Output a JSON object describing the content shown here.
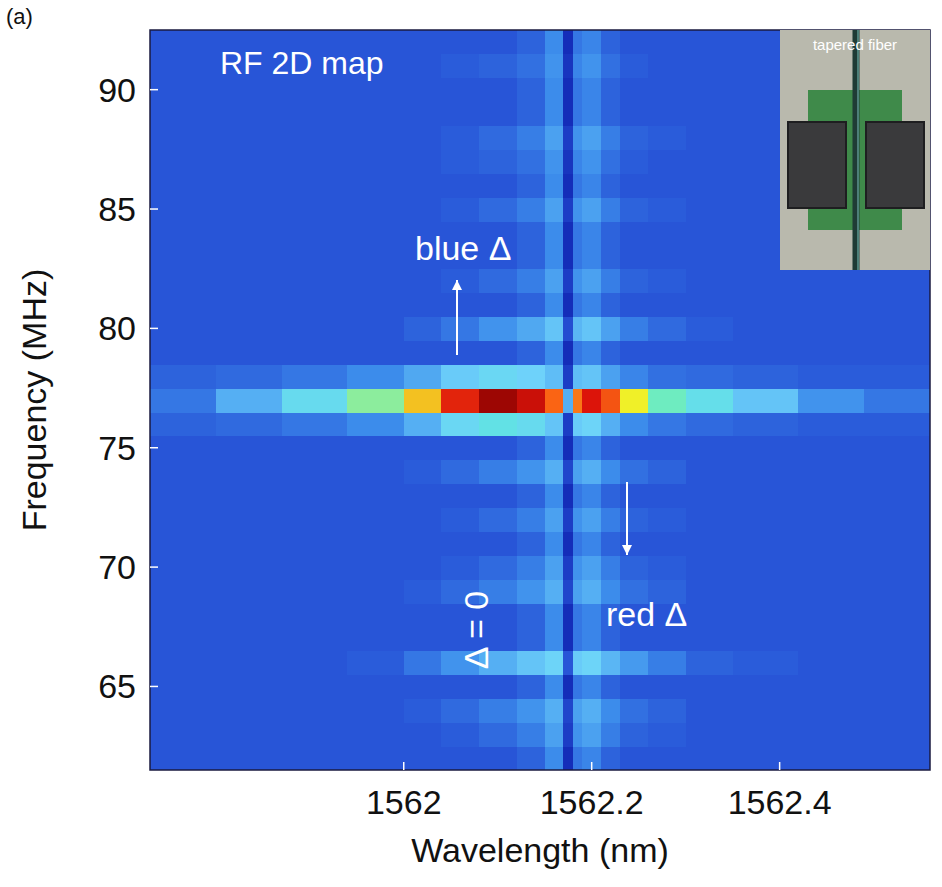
{
  "chart_data": {
    "type": "heatmap",
    "panel_label": "(a)",
    "title": "RF 2D map",
    "x_label": "Wavelength (nm)",
    "y_label": "Frequency (MHz)",
    "annotations": [
      "blue Δ",
      "red Δ",
      "Δ = 0"
    ],
    "inset_label": "tapered fiber",
    "xlim": [
      1561.73,
      1562.56
    ],
    "ylim": [
      61.5,
      92.5
    ],
    "xticks": [
      1562,
      1562.2,
      1562.4
    ],
    "yticks": [
      65,
      70,
      75,
      80,
      85,
      90
    ],
    "zlim": [
      0,
      100
    ],
    "x_bins": [
      1561.73,
      1561.8,
      1561.87,
      1561.94,
      1562.0,
      1562.04,
      1562.08,
      1562.12,
      1562.15,
      1562.17,
      1562.18,
      1562.19,
      1562.21,
      1562.23,
      1562.26,
      1562.3,
      1562.35,
      1562.42,
      1562.49,
      1562.56
    ],
    "y_bins": [
      61.5,
      62.5,
      63.5,
      64.5,
      65.5,
      66.5,
      67.5,
      68.5,
      69.5,
      70.5,
      71.5,
      72.5,
      73.5,
      74.5,
      75.5,
      76.5,
      77.5,
      78.5,
      79.5,
      80.5,
      81.5,
      82.5,
      83.5,
      84.5,
      85.5,
      86.5,
      87.5,
      88.5,
      89.5,
      90.5,
      91.5,
      92.5
    ],
    "values": [
      [
        17,
        17,
        17,
        17,
        17,
        17,
        17,
        19,
        25,
        12,
        22,
        24,
        19,
        17,
        17,
        17,
        17,
        17,
        17
      ],
      [
        17,
        17,
        17,
        17,
        17,
        18,
        20,
        23,
        28,
        14,
        26,
        28,
        23,
        19,
        18,
        17,
        17,
        17,
        17
      ],
      [
        17,
        17,
        17,
        17,
        18,
        20,
        23,
        26,
        30,
        15,
        28,
        30,
        25,
        21,
        19,
        17,
        17,
        17,
        17
      ],
      [
        17,
        17,
        17,
        17,
        17,
        17,
        17,
        19,
        25,
        12,
        22,
        24,
        19,
        17,
        17,
        17,
        17,
        17,
        17
      ],
      [
        17,
        17,
        17,
        18,
        22,
        26,
        30,
        33,
        36,
        17,
        34,
        36,
        31,
        27,
        23,
        19,
        18,
        17,
        17
      ],
      [
        17,
        17,
        17,
        17,
        17,
        17,
        17,
        19,
        25,
        12,
        22,
        24,
        19,
        17,
        17,
        17,
        17,
        17,
        17
      ],
      [
        17,
        17,
        17,
        17,
        17,
        17,
        17,
        19,
        25,
        12,
        22,
        24,
        19,
        17,
        17,
        17,
        17,
        17,
        17
      ],
      [
        17,
        17,
        17,
        17,
        18,
        20,
        23,
        26,
        30,
        15,
        28,
        30,
        25,
        21,
        19,
        17,
        17,
        17,
        17
      ],
      [
        17,
        17,
        17,
        17,
        17,
        18,
        20,
        23,
        28,
        14,
        26,
        28,
        23,
        19,
        18,
        17,
        17,
        17,
        17
      ],
      [
        17,
        17,
        17,
        17,
        17,
        17,
        17,
        19,
        25,
        12,
        22,
        24,
        19,
        17,
        17,
        17,
        17,
        17,
        17
      ],
      [
        17,
        17,
        17,
        17,
        17,
        18,
        20,
        23,
        28,
        14,
        26,
        28,
        23,
        19,
        18,
        17,
        17,
        17,
        17
      ],
      [
        17,
        17,
        17,
        17,
        17,
        17,
        17,
        19,
        25,
        12,
        22,
        24,
        19,
        17,
        17,
        17,
        17,
        17,
        17
      ],
      [
        17,
        17,
        17,
        17,
        18,
        20,
        23,
        26,
        30,
        15,
        28,
        30,
        25,
        21,
        19,
        17,
        17,
        17,
        17
      ],
      [
        17,
        17,
        17,
        17,
        17,
        17,
        17,
        19,
        25,
        12,
        22,
        24,
        19,
        17,
        17,
        17,
        17,
        17,
        17
      ],
      [
        19,
        20,
        22,
        25,
        30,
        38,
        44,
        40,
        33,
        14,
        34,
        36,
        30,
        25,
        22,
        20,
        19,
        18,
        18
      ],
      [
        22,
        30,
        40,
        55,
        70,
        88,
        97,
        92,
        80,
        30,
        78,
        90,
        82,
        65,
        52,
        42,
        33,
        26,
        22
      ],
      [
        19,
        20,
        22,
        25,
        29,
        34,
        38,
        35,
        32,
        14,
        32,
        33,
        28,
        24,
        21,
        20,
        19,
        18,
        18
      ],
      [
        17,
        17,
        17,
        17,
        17,
        17,
        17,
        19,
        25,
        12,
        22,
        24,
        19,
        17,
        17,
        17,
        17,
        17,
        17
      ],
      [
        17,
        17,
        17,
        17,
        19,
        22,
        26,
        29,
        33,
        16,
        31,
        33,
        28,
        23,
        20,
        18,
        17,
        17,
        17
      ],
      [
        17,
        17,
        17,
        17,
        17,
        17,
        17,
        19,
        25,
        12,
        22,
        24,
        19,
        17,
        17,
        17,
        17,
        17,
        17
      ],
      [
        17,
        17,
        17,
        17,
        17,
        18,
        20,
        23,
        28,
        14,
        26,
        28,
        23,
        19,
        18,
        17,
        17,
        17,
        17
      ],
      [
        17,
        17,
        17,
        17,
        17,
        17,
        17,
        19,
        25,
        12,
        22,
        24,
        19,
        17,
        17,
        17,
        17,
        17,
        17
      ],
      [
        17,
        17,
        17,
        17,
        17,
        17,
        17,
        19,
        25,
        12,
        22,
        24,
        19,
        17,
        17,
        17,
        17,
        17,
        17
      ],
      [
        17,
        17,
        17,
        17,
        17,
        18,
        20,
        23,
        28,
        14,
        26,
        28,
        23,
        19,
        18,
        17,
        17,
        17,
        17
      ],
      [
        17,
        17,
        17,
        17,
        17,
        17,
        17,
        19,
        25,
        12,
        22,
        24,
        19,
        17,
        17,
        17,
        17,
        17,
        17
      ],
      [
        17,
        17,
        17,
        17,
        17,
        18,
        19,
        21,
        26,
        13,
        24,
        26,
        21,
        18,
        17,
        17,
        17,
        17,
        17
      ],
      [
        17,
        17,
        17,
        17,
        17,
        18,
        20,
        23,
        28,
        14,
        26,
        28,
        23,
        19,
        18,
        17,
        17,
        17,
        17
      ],
      [
        17,
        17,
        17,
        17,
        17,
        17,
        17,
        19,
        25,
        12,
        22,
        24,
        19,
        17,
        17,
        17,
        17,
        17,
        17
      ],
      [
        17,
        17,
        17,
        17,
        17,
        17,
        17,
        19,
        25,
        12,
        22,
        24,
        19,
        17,
        17,
        17,
        17,
        17,
        17
      ],
      [
        17,
        17,
        17,
        17,
        17,
        18,
        19,
        21,
        26,
        13,
        24,
        26,
        21,
        18,
        17,
        17,
        17,
        17,
        17
      ],
      [
        17,
        17,
        17,
        17,
        17,
        17,
        17,
        19,
        25,
        12,
        22,
        24,
        19,
        17,
        17,
        17,
        17,
        17,
        17
      ]
    ]
  }
}
